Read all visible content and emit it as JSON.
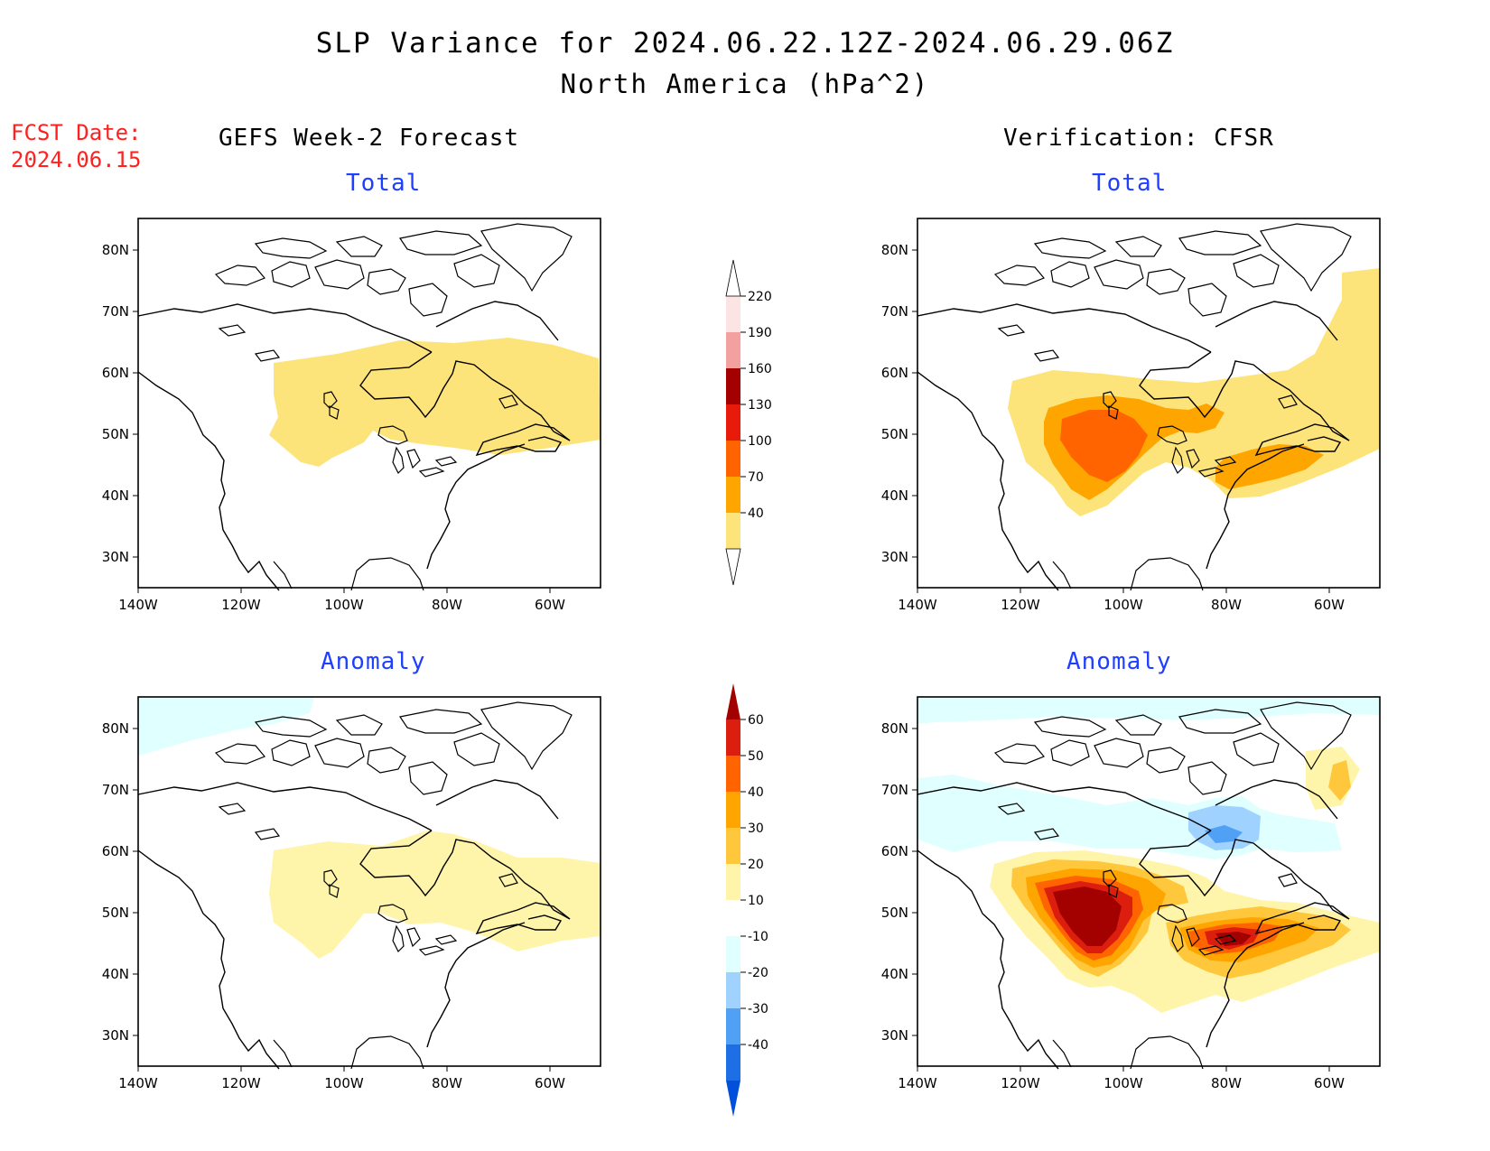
{
  "title": {
    "line1": "SLP Variance for 2024.06.22.12Z-2024.06.29.06Z",
    "line2": "North America (hPa^2)"
  },
  "fcst": {
    "label": "FCST Date:",
    "date": "2024.06.15"
  },
  "columns": {
    "left": "GEFS Week-2 Forecast",
    "right": "Verification: CFSR"
  },
  "panels": {
    "fc_total": "Total",
    "fc_anom": "Anomaly",
    "ver_total": "Total",
    "ver_anom": "Anomaly"
  },
  "axes": {
    "lat_ticks": [
      "80N",
      "70N",
      "60N",
      "50N",
      "40N",
      "30N"
    ],
    "lon_ticks": [
      "140W",
      "120W",
      "100W",
      "80W",
      "60W"
    ]
  },
  "colorbar_total": {
    "levels": [
      "40",
      "70",
      "100",
      "130",
      "160",
      "190",
      "220"
    ],
    "colors": [
      "#fde47a",
      "#ffa500",
      "#ff6400",
      "#e81a0a",
      "#a30000",
      "#f2a0a0",
      "#fde4e4"
    ]
  },
  "colorbar_anom": {
    "levels": [
      "60",
      "50",
      "40",
      "30",
      "20",
      "10",
      "-10",
      "-20",
      "-30",
      "-40"
    ],
    "colors_top_down": [
      "#a30000",
      "#dc1e0f",
      "#ff6400",
      "#ffa500",
      "#ffc83c",
      "#fff5aa",
      "#ffffff",
      "#e0ffff",
      "#a0d2ff",
      "#50a0f5",
      "#1e6ee6",
      "#0050dc"
    ]
  },
  "shading_colors": {
    "c40": "#fde47a",
    "c70": "#ffa500",
    "c100": "#ff6400",
    "a10": "#fff5aa",
    "a20": "#ffc83c",
    "a30": "#ffa500",
    "a40": "#ff6400",
    "a50": "#dc1e0f",
    "a60": "#a30000",
    "n10": "#e0ffff",
    "n20": "#a0d2ff",
    "n30": "#50a0f5"
  }
}
